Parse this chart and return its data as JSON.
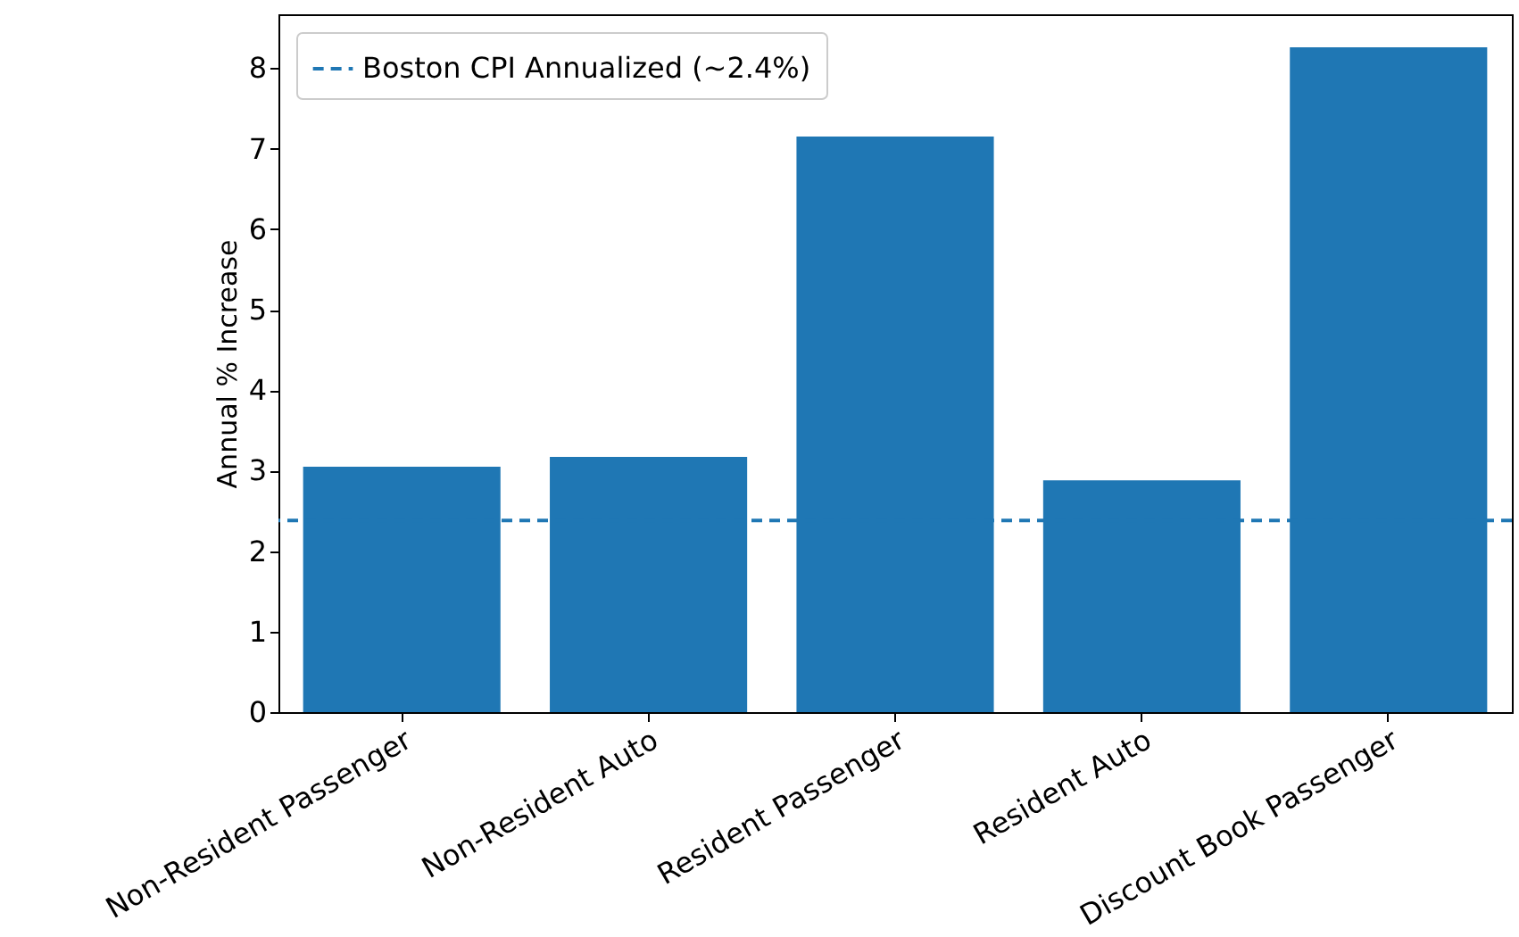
{
  "chart_data": {
    "type": "bar",
    "ylabel": "Annual % Increase",
    "categories": [
      "Non-Resident Passenger",
      "Non-Resident Auto",
      "Resident Passenger",
      "Resident Auto",
      "Discount Book Passenger"
    ],
    "values": [
      3.05,
      3.17,
      7.15,
      2.88,
      8.26
    ],
    "color": "#1f77b4",
    "ylim": [
      0,
      8.67
    ],
    "yticks": [
      0,
      1,
      2,
      3,
      4,
      5,
      6,
      7,
      8
    ],
    "grid": false,
    "legend": "top left",
    "ref_lines": [
      {
        "axis": "y",
        "value": 2.38,
        "label": "Boston CPI Annualized (~2.4%)",
        "color": "#1f77b4",
        "line_style": "dashed"
      }
    ]
  }
}
